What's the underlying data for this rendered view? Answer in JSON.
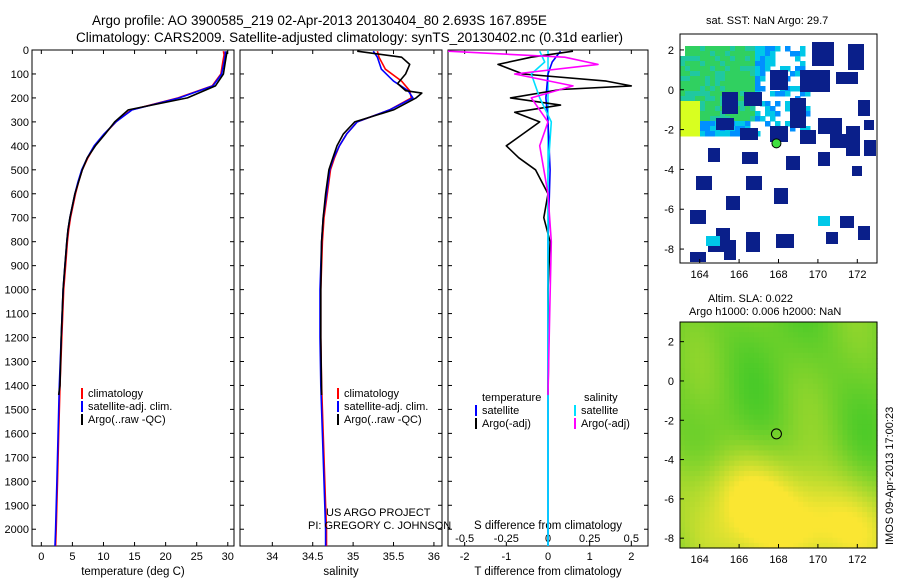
{
  "header": {
    "title_line1": "Argo profile: AO 3900585_219 02-Apr-2013 20130404_80 2.693S 167.895E",
    "title_line2": "Climatology: CARS2009. Satellite-adjusted climatology: synTS_20130402.nc (0.31d earlier)"
  },
  "colors": {
    "climatology": "#ff0000",
    "satellite_clim": "#0000ff",
    "argo": "#000000",
    "satellite_diff": "#00e0ff",
    "argo_salinity_diff": "#ff00ff"
  },
  "credits": {
    "line1": "US ARGO PROJECT",
    "line2": "PI: GREGORY C. JOHNSON"
  },
  "side_stamp": "IMOS 09-Apr-2013 17:00:23",
  "chart_data": [
    {
      "id": "temperature",
      "type": "line",
      "xlabel": "temperature (deg C)",
      "ylabel": "",
      "xlim": [
        -1.5,
        31
      ],
      "ylim": [
        2070,
        0
      ],
      "xticks": [
        0,
        5,
        10,
        15,
        20,
        25,
        30
      ],
      "yticks": [
        0,
        100,
        200,
        300,
        400,
        500,
        600,
        700,
        800,
        900,
        1000,
        1100,
        1200,
        1300,
        1400,
        1500,
        1600,
        1700,
        1800,
        1900,
        2000
      ],
      "legend": [
        "climatology",
        "satellite-adj. clim.",
        "Argo(..raw -QC)"
      ],
      "series": [
        {
          "name": "climatology",
          "color": "#ff0000",
          "x": [
            29.3,
            29.4,
            29.2,
            28.9,
            27.5,
            22.0,
            14.5,
            12.0,
            10.2,
            8.6,
            7.5,
            6.6,
            6.0,
            5.5,
            5.1,
            4.7,
            4.4,
            4.2,
            3.9,
            3.6,
            3.3,
            3.0,
            2.8,
            2.6,
            2.4,
            2.3
          ],
          "y": [
            5,
            20,
            50,
            100,
            150,
            200,
            250,
            300,
            350,
            400,
            450,
            500,
            550,
            600,
            650,
            700,
            750,
            800,
            900,
            1000,
            1200,
            1400,
            1600,
            1800,
            2000,
            2070
          ]
        },
        {
          "name": "satellite-adj. clim.",
          "color": "#0000ff",
          "x": [
            29.6,
            29.6,
            29.4,
            29.0,
            27.6,
            22.2,
            14.6,
            12.0,
            10.1,
            8.5,
            7.4,
            6.5,
            5.9,
            5.4,
            5.0,
            4.6,
            4.3,
            4.1,
            3.8,
            3.5,
            3.2,
            2.9,
            2.7,
            2.5,
            2.3,
            2.2
          ],
          "y": [
            5,
            20,
            50,
            100,
            150,
            200,
            250,
            300,
            350,
            400,
            450,
            500,
            550,
            600,
            650,
            700,
            750,
            800,
            900,
            1000,
            1200,
            1400,
            1600,
            1800,
            2000,
            2070
          ]
        },
        {
          "name": "Argo(..raw -QC)",
          "color": "#000000",
          "x": [
            29.9,
            29.8,
            29.6,
            29.3,
            28.0,
            23.5,
            14.0,
            11.8,
            10.3,
            8.7,
            7.4,
            6.6,
            6.0,
            5.4,
            5.0,
            4.6,
            4.3,
            4.1,
            3.8,
            3.5,
            3.2,
            3.0,
            2.8
          ],
          "y": [
            5,
            20,
            50,
            100,
            150,
            200,
            250,
            300,
            350,
            400,
            450,
            500,
            550,
            600,
            650,
            700,
            750,
            800,
            900,
            1000,
            1200,
            1400,
            1440
          ]
        }
      ]
    },
    {
      "id": "salinity",
      "type": "line",
      "xlabel": "salinity",
      "xlim": [
        33.6,
        36.1
      ],
      "ylim": [
        2070,
        0
      ],
      "xticks": [
        34,
        34.5,
        35,
        35.5,
        36
      ],
      "legend": [
        "climatology",
        "satellite-adj. clim.",
        "Argo(..raw -QC)"
      ],
      "series": [
        {
          "name": "climatology",
          "color": "#ff0000",
          "x": [
            35.3,
            35.32,
            35.4,
            35.6,
            35.7,
            35.72,
            35.45,
            35.05,
            34.92,
            34.83,
            34.77,
            34.72,
            34.68,
            34.64,
            34.62,
            34.6,
            34.6,
            34.61,
            34.63,
            34.65,
            34.66,
            34.67,
            34.67
          ],
          "y": [
            5,
            30,
            80,
            130,
            170,
            200,
            250,
            300,
            350,
            400,
            450,
            500,
            600,
            700,
            800,
            1000,
            1200,
            1400,
            1600,
            1800,
            1900,
            2000,
            2070
          ]
        },
        {
          "name": "satellite-adj. clim.",
          "color": "#0000ff",
          "x": [
            35.25,
            35.3,
            35.35,
            35.5,
            35.68,
            35.74,
            35.45,
            35.05,
            34.92,
            34.83,
            34.76,
            34.71,
            34.67,
            34.63,
            34.61,
            34.59,
            34.59,
            34.6,
            34.62,
            34.64,
            34.65,
            34.66,
            34.66
          ],
          "y": [
            5,
            30,
            80,
            130,
            170,
            200,
            250,
            300,
            350,
            400,
            450,
            500,
            600,
            700,
            800,
            1000,
            1200,
            1400,
            1600,
            1800,
            1900,
            2000,
            2070
          ]
        },
        {
          "name": "Argo(..raw -QC)",
          "color": "#000000",
          "x": [
            35.05,
            35.6,
            35.7,
            35.65,
            35.55,
            35.65,
            35.85,
            35.78,
            35.5,
            35.02,
            34.88,
            34.8,
            34.75,
            34.7,
            34.66,
            34.63,
            34.61,
            34.6,
            34.6,
            34.61
          ],
          "y": [
            5,
            30,
            60,
            100,
            140,
            170,
            180,
            200,
            250,
            300,
            350,
            400,
            450,
            500,
            600,
            700,
            800,
            1000,
            1200,
            1440
          ]
        }
      ]
    },
    {
      "id": "differences",
      "type": "line",
      "xlabel": "T difference from climatology",
      "xlabel_top": "S difference from climatology",
      "xlim": [
        -2.4,
        2.4
      ],
      "ylim": [
        2070,
        0
      ],
      "xticks_T": [
        -2,
        -1,
        0,
        1,
        2
      ],
      "xticks_S": [
        -0.5,
        -0.25,
        0,
        0.25,
        0.5
      ],
      "legend_title_left": "temperature",
      "legend_title_right": "salinity",
      "legend_left": [
        "satellite",
        "Argo(-adj)"
      ],
      "legend_right": [
        "satellite",
        "Argo(-adj)"
      ],
      "series": [
        {
          "name": "T satellite",
          "color": "#0000ff",
          "x": [
            0.3,
            0.1,
            0.0,
            -0.05,
            0.0,
            0.05,
            0.0,
            0.0,
            0.0,
            0.0
          ],
          "y": [
            5,
            50,
            100,
            200,
            300,
            500,
            800,
            1200,
            1600,
            2070
          ]
        },
        {
          "name": "T Argo(-adj)",
          "color": "#000000",
          "x": [
            0.6,
            -0.4,
            -1.2,
            -0.6,
            1.4,
            2.0,
            0.3,
            -0.9,
            0.3,
            -0.8,
            -0.2,
            -0.6,
            -1.0,
            -0.7,
            -0.3,
            0.0,
            -0.1,
            0.05,
            0.0,
            0.02,
            0.0
          ],
          "y": [
            5,
            30,
            60,
            100,
            130,
            150,
            165,
            200,
            230,
            260,
            300,
            350,
            400,
            450,
            500,
            600,
            700,
            800,
            1000,
            1200,
            1440
          ]
        },
        {
          "name": "S satellite",
          "color": "#00e0ff",
          "x": [
            -0.05,
            -0.02,
            -0.1,
            -0.05,
            0.02,
            0.0,
            0.0,
            0.0,
            0.0
          ],
          "y": [
            5,
            50,
            100,
            200,
            300,
            500,
            900,
            1400,
            2070
          ]
        },
        {
          "name": "S Argo(-adj)",
          "color": "#ff00ff",
          "x": [
            -0.6,
            0.1,
            0.3,
            -0.2,
            0.15,
            -0.1,
            0.0,
            -0.05,
            0.0,
            0.02,
            0.01,
            0.0
          ],
          "y": [
            5,
            30,
            60,
            100,
            150,
            200,
            300,
            400,
            600,
            800,
            1100,
            1440
          ]
        }
      ]
    },
    {
      "id": "sst_map",
      "type": "heatmap",
      "title": "sat. SST: NaN Argo: 29.7",
      "xlim": [
        163,
        173
      ],
      "ylim": [
        -8.7,
        2.8
      ],
      "xticks": [
        164,
        166,
        168,
        170,
        172
      ],
      "yticks": [
        2,
        0,
        -2,
        -4,
        -6,
        -8
      ],
      "marker": {
        "lon": 167.895,
        "lat": -2.693
      }
    },
    {
      "id": "sla_map",
      "type": "heatmap",
      "title": "Altim. SLA: 0.022",
      "subtitle": "Argo h1000: 0.006 h2000: NaN",
      "xlim": [
        163,
        173
      ],
      "ylim": [
        -8.5,
        3.0
      ],
      "xticks": [
        164,
        166,
        168,
        170,
        172
      ],
      "yticks": [
        2,
        0,
        -2,
        -4,
        -6,
        -8
      ],
      "marker": {
        "lon": 167.895,
        "lat": -2.693
      }
    }
  ]
}
